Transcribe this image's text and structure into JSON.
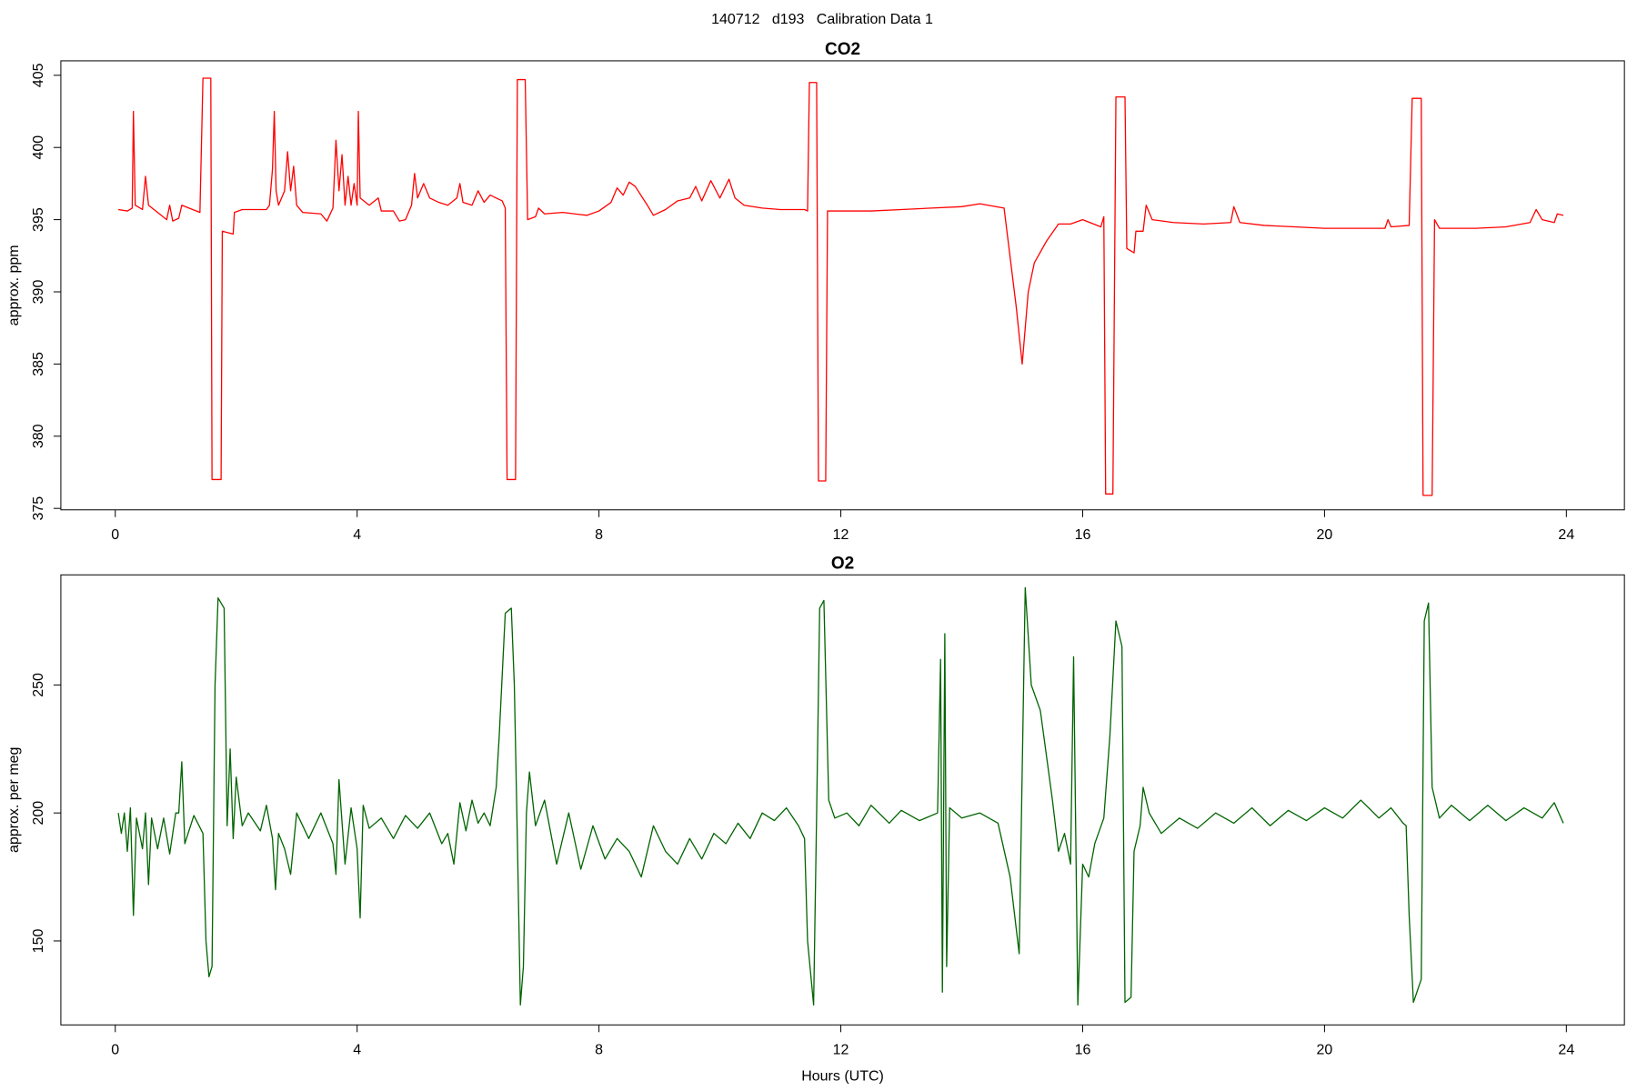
{
  "title": "140712   d193   Calibration Data 1",
  "chart_data": [
    {
      "type": "line",
      "title": "CO2",
      "y_label": "approx. ppm",
      "x": [
        0.05,
        0.2,
        0.28,
        0.3,
        0.33,
        0.45,
        0.5,
        0.55,
        0.7,
        0.85,
        0.9,
        0.95,
        1.05,
        1.1,
        1.4,
        1.45,
        1.58,
        1.6,
        1.75,
        1.77,
        1.95,
        1.97,
        2.1,
        2.5,
        2.55,
        2.6,
        2.63,
        2.66,
        2.7,
        2.8,
        2.85,
        2.9,
        2.95,
        3.0,
        3.1,
        3.4,
        3.5,
        3.6,
        3.65,
        3.7,
        3.75,
        3.8,
        3.85,
        3.9,
        3.95,
        4.0,
        4.02,
        4.05,
        4.2,
        4.35,
        4.4,
        4.6,
        4.7,
        4.8,
        4.9,
        4.95,
        5.0,
        5.1,
        5.2,
        5.35,
        5.5,
        5.65,
        5.7,
        5.75,
        5.9,
        6.0,
        6.1,
        6.2,
        6.3,
        6.4,
        6.45,
        6.48,
        6.62,
        6.65,
        6.78,
        6.82,
        6.95,
        7.0,
        7.1,
        7.4,
        7.8,
        8.0,
        8.2,
        8.3,
        8.4,
        8.5,
        8.6,
        8.8,
        8.9,
        9.1,
        9.3,
        9.5,
        9.6,
        9.7,
        9.85,
        10.0,
        10.15,
        10.25,
        10.4,
        10.7,
        11.0,
        11.4,
        11.45,
        11.48,
        11.6,
        11.63,
        11.75,
        11.78,
        12.5,
        13.0,
        13.5,
        14.0,
        14.3,
        14.7,
        14.9,
        15.0,
        15.1,
        15.2,
        15.4,
        15.6,
        15.8,
        16.0,
        16.3,
        16.35,
        16.38,
        16.5,
        16.55,
        16.7,
        16.73,
        16.85,
        16.88,
        17.0,
        17.05,
        17.15,
        17.5,
        18.0,
        18.45,
        18.5,
        18.6,
        19.0,
        19.5,
        20.0,
        20.5,
        21.0,
        21.05,
        21.1,
        21.4,
        21.45,
        21.6,
        21.63,
        21.78,
        21.82,
        21.9,
        22.5,
        23.0,
        23.4,
        23.5,
        23.6,
        23.8,
        23.85,
        23.95
      ],
      "series": [
        {
          "name": "CO2",
          "color": "#ff0000",
          "values": [
            395.7,
            395.6,
            395.8,
            402.5,
            396,
            395.7,
            398,
            396,
            395.5,
            395,
            396,
            394.9,
            395.1,
            396,
            395.5,
            404.8,
            404.8,
            377,
            377,
            394.2,
            394,
            395.5,
            395.7,
            395.7,
            396,
            398.5,
            402.5,
            397,
            396,
            397,
            399.7,
            397,
            398.7,
            396,
            395.5,
            395.4,
            394.9,
            395.8,
            400.5,
            397,
            399.5,
            396,
            398,
            396,
            397.5,
            396,
            402.5,
            396.5,
            396,
            396.5,
            395.6,
            395.6,
            394.9,
            395,
            396,
            398.2,
            396.5,
            397.5,
            396.5,
            396.2,
            396,
            396.5,
            397.5,
            396.2,
            396,
            397,
            396.2,
            396.7,
            396.5,
            396.3,
            395.8,
            377,
            377,
            404.7,
            404.7,
            395,
            395.2,
            395.8,
            395.4,
            395.5,
            395.3,
            395.6,
            396.2,
            397.2,
            396.7,
            397.6,
            397.3,
            396,
            395.3,
            395.7,
            396.3,
            396.5,
            397.3,
            396.3,
            397.7,
            396.5,
            397.8,
            396.5,
            396,
            395.8,
            395.7,
            395.7,
            395.6,
            404.5,
            404.5,
            376.9,
            376.9,
            395.6,
            395.6,
            395.7,
            395.8,
            395.9,
            396.1,
            395.8,
            389,
            385,
            390,
            392,
            393.5,
            394.7,
            394.7,
            395,
            394.5,
            395.2,
            376,
            376,
            403.5,
            403.5,
            393,
            392.7,
            394.2,
            394.2,
            396,
            395,
            394.8,
            394.7,
            394.8,
            395.9,
            394.8,
            394.6,
            394.5,
            394.4,
            394.4,
            394.4,
            395,
            394.5,
            394.6,
            403.4,
            403.4,
            375.9,
            375.9,
            395,
            394.4,
            394.4,
            394.5,
            394.8,
            395.7,
            395,
            394.8,
            395.4,
            395.3
          ]
        }
      ],
      "xlim": [
        -0.9,
        24.96
      ],
      "xticks": [
        0,
        4,
        8,
        12,
        16,
        20,
        24
      ],
      "ylim": [
        374.9,
        406.0
      ],
      "yticks": [
        375,
        380,
        385,
        390,
        395,
        400,
        405
      ]
    },
    {
      "type": "line",
      "title": "O2",
      "y_label": "approx. per meg",
      "x_label": "Hours (UTC)",
      "x": [
        0.05,
        0.1,
        0.15,
        0.2,
        0.25,
        0.3,
        0.35,
        0.45,
        0.5,
        0.55,
        0.6,
        0.7,
        0.8,
        0.9,
        1.0,
        1.05,
        1.1,
        1.15,
        1.3,
        1.45,
        1.5,
        1.55,
        1.6,
        1.65,
        1.7,
        1.8,
        1.85,
        1.9,
        1.95,
        2.0,
        2.1,
        2.2,
        2.4,
        2.5,
        2.6,
        2.65,
        2.7,
        2.8,
        2.9,
        3.0,
        3.2,
        3.4,
        3.6,
        3.65,
        3.7,
        3.8,
        3.9,
        4.0,
        4.05,
        4.1,
        4.2,
        4.4,
        4.6,
        4.8,
        5.0,
        5.2,
        5.4,
        5.5,
        5.6,
        5.7,
        5.8,
        5.9,
        6.0,
        6.1,
        6.2,
        6.3,
        6.35,
        6.45,
        6.55,
        6.6,
        6.65,
        6.7,
        6.75,
        6.8,
        6.85,
        6.95,
        7.1,
        7.3,
        7.5,
        7.7,
        7.9,
        8.1,
        8.3,
        8.5,
        8.7,
        8.9,
        9.1,
        9.3,
        9.5,
        9.7,
        9.9,
        10.1,
        10.3,
        10.5,
        10.7,
        10.9,
        11.1,
        11.3,
        11.4,
        11.45,
        11.55,
        11.6,
        11.65,
        11.72,
        11.8,
        11.9,
        12.1,
        12.3,
        12.5,
        12.8,
        13.0,
        13.3,
        13.6,
        13.65,
        13.68,
        13.72,
        13.75,
        13.8,
        14.0,
        14.3,
        14.6,
        14.8,
        14.95,
        15.05,
        15.15,
        15.3,
        15.5,
        15.6,
        15.7,
        15.8,
        15.85,
        15.92,
        16.0,
        16.1,
        16.2,
        16.35,
        16.45,
        16.55,
        16.65,
        16.7,
        16.8,
        16.85,
        16.95,
        17.0,
        17.1,
        17.3,
        17.6,
        17.9,
        18.2,
        18.5,
        18.8,
        19.1,
        19.4,
        19.7,
        20.0,
        20.3,
        20.6,
        20.9,
        21.1,
        21.3,
        21.35,
        21.4,
        21.47,
        21.6,
        21.65,
        21.72,
        21.78,
        21.9,
        22.1,
        22.4,
        22.7,
        23.0,
        23.3,
        23.6,
        23.8,
        23.95
      ],
      "series": [
        {
          "name": "O2",
          "color": "#006400",
          "values": [
            200,
            192,
            200,
            185,
            202,
            160,
            198,
            186,
            200,
            172,
            198,
            186,
            198,
            184,
            200,
            200,
            220,
            188,
            199,
            192,
            150,
            136,
            140,
            250,
            284,
            280,
            195,
            225,
            190,
            214,
            195,
            200,
            193,
            203,
            190,
            170,
            192,
            186,
            176,
            200,
            190,
            200,
            188,
            176,
            213,
            180,
            202,
            186,
            159,
            203,
            194,
            198,
            190,
            199,
            194,
            200,
            188,
            192,
            180,
            204,
            193,
            205,
            196,
            200,
            195,
            210,
            230,
            278,
            280,
            250,
            190,
            125,
            140,
            200,
            216,
            195,
            205,
            180,
            200,
            178,
            195,
            182,
            190,
            185,
            175,
            195,
            185,
            180,
            190,
            182,
            192,
            188,
            196,
            190,
            200,
            197,
            202,
            195,
            190,
            150,
            125,
            200,
            280,
            283,
            205,
            198,
            200,
            195,
            203,
            196,
            201,
            197,
            200,
            260,
            130,
            270,
            140,
            202,
            198,
            200,
            196,
            175,
            145,
            288,
            250,
            240,
            205,
            185,
            192,
            180,
            261,
            125,
            180,
            175,
            188,
            198,
            230,
            275,
            265,
            126,
            128,
            185,
            195,
            210,
            200,
            192,
            198,
            194,
            200,
            196,
            202,
            195,
            201,
            197,
            202,
            198,
            205,
            198,
            202,
            196,
            195,
            160,
            126,
            135,
            275,
            282,
            210,
            198,
            203,
            197,
            203,
            197,
            202,
            198,
            204,
            196
          ]
        }
      ],
      "xlim": [
        -0.9,
        24.96
      ],
      "xticks": [
        0,
        4,
        8,
        12,
        16,
        20,
        24
      ],
      "ylim": [
        117.2,
        293.0
      ],
      "yticks": [
        150,
        200,
        250
      ]
    }
  ]
}
